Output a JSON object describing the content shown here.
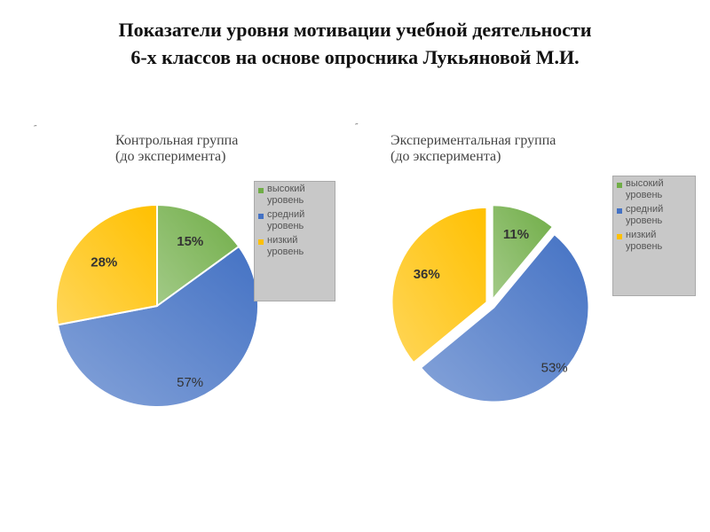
{
  "title": {
    "line1": "Показатели уровня мотивации учебной деятельности",
    "line2": "6-х классов на основе опросника Лукьяновой М.И."
  },
  "colors": {
    "high": "#70ad47",
    "medium": "#4472c4",
    "low": "#ffc000",
    "legend_bg": "#c8c8c8"
  },
  "chart_data": [
    {
      "type": "pie",
      "title": "Контрольная группа\n(до эксперимента)",
      "categories": [
        "высокий уровень",
        "средний уровень",
        "низкий уровень"
      ],
      "values": [
        15,
        57,
        28
      ],
      "labels": [
        "15%",
        "57%",
        "28%"
      ],
      "exploded": false,
      "legend": "right"
    },
    {
      "type": "pie",
      "title": "Экспериментальная группа\n(до эксперимента)",
      "categories": [
        "высокий уровень",
        "средний уровень",
        "низкий уровень"
      ],
      "values": [
        11,
        53,
        36
      ],
      "labels": [
        "11%",
        "53%",
        "36%"
      ],
      "exploded": true,
      "legend": "right"
    }
  ]
}
